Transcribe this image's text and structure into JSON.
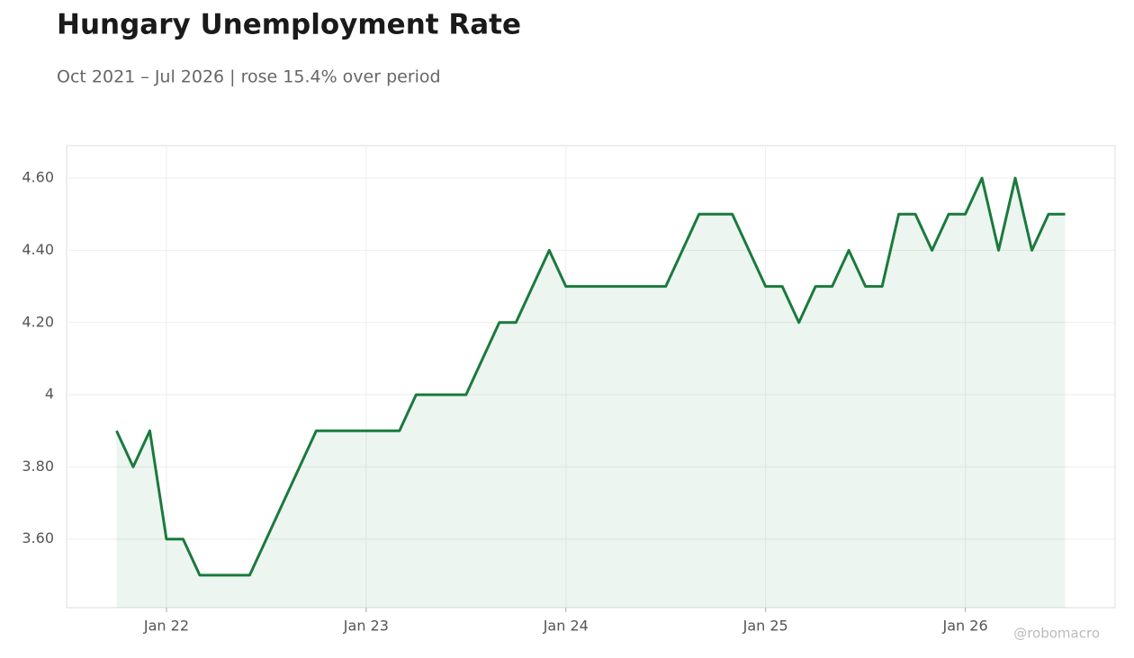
{
  "chart_data": {
    "type": "line",
    "title": "Hungary Unemployment Rate",
    "subtitle": "Oct 2021 – Jul 2026 | rose 15.4% over period",
    "watermark": "@robomacro",
    "color": "#1a7a3c",
    "grid": true,
    "x": [
      "2021-10",
      "2021-11",
      "2021-12",
      "2022-01",
      "2022-02",
      "2022-03",
      "2022-04",
      "2022-05",
      "2022-06",
      "2022-07",
      "2022-08",
      "2022-09",
      "2022-10",
      "2022-11",
      "2022-12",
      "2023-01",
      "2023-02",
      "2023-03",
      "2023-04",
      "2023-05",
      "2023-06",
      "2023-07",
      "2023-08",
      "2023-09",
      "2023-10",
      "2023-11",
      "2023-12",
      "2024-01",
      "2024-02",
      "2024-03",
      "2024-04",
      "2024-05",
      "2024-06",
      "2024-07",
      "2024-08",
      "2024-09",
      "2024-10",
      "2024-11",
      "2024-12",
      "2025-01",
      "2025-02",
      "2025-03",
      "2025-04",
      "2025-05",
      "2025-06",
      "2025-07",
      "2025-08",
      "2025-09",
      "2025-10",
      "2025-11",
      "2025-12",
      "2026-01",
      "2026-02",
      "2026-03",
      "2026-04",
      "2026-05",
      "2026-06",
      "2026-07"
    ],
    "values": [
      3.9,
      3.8,
      3.9,
      3.6,
      3.6,
      3.5,
      3.5,
      3.5,
      3.5,
      3.6,
      3.7,
      3.8,
      3.9,
      3.9,
      3.9,
      3.9,
      3.9,
      3.9,
      4.0,
      4.0,
      4.0,
      4.0,
      4.1,
      4.2,
      4.2,
      4.3,
      4.4,
      4.3,
      4.3,
      4.3,
      4.3,
      4.3,
      4.3,
      4.3,
      4.4,
      4.5,
      4.5,
      4.5,
      4.4,
      4.3,
      4.3,
      4.2,
      4.3,
      4.3,
      4.4,
      4.3,
      4.3,
      4.5,
      4.5,
      4.4,
      4.5,
      4.5,
      4.6,
      4.4,
      4.6,
      4.4,
      4.5,
      4.5
    ],
    "xlim": [
      "2021-07",
      "2026-10"
    ],
    "xticks": [
      {
        "value": "2022-01",
        "label": "Jan 22"
      },
      {
        "value": "2023-01",
        "label": "Jan 23"
      },
      {
        "value": "2024-01",
        "label": "Jan 24"
      },
      {
        "value": "2025-01",
        "label": "Jan 25"
      },
      {
        "value": "2026-01",
        "label": "Jan 26"
      }
    ],
    "ylim": [
      3.41,
      4.69
    ],
    "yticks": [
      {
        "value": 3.6,
        "label": "3.60"
      },
      {
        "value": 3.8,
        "label": "3.80"
      },
      4,
      {
        "value": 4.2,
        "label": "4.20"
      },
      {
        "value": 4.4,
        "label": "4.40"
      },
      {
        "value": 4.6,
        "label": "4.60"
      }
    ]
  }
}
